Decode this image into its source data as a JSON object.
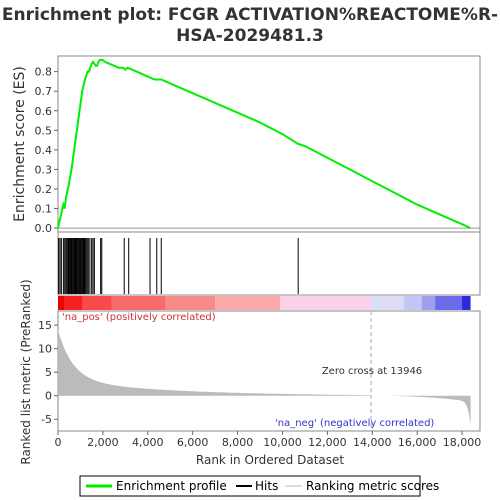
{
  "chart_data": {
    "type": "line",
    "title_lines": [
      "Enrichment plot: FCGR ACTIVATION%REACTOME%R-",
      "HSA-2029481.3"
    ],
    "es_panel": {
      "ylabel": "Enrichment score (ES)",
      "y_ticks": [
        "0.0",
        "0.1",
        "0.2",
        "0.3",
        "0.4",
        "0.5",
        "0.6",
        "0.7",
        "0.8"
      ],
      "ylim": [
        -0.02,
        0.88
      ],
      "x": [
        0,
        60,
        120,
        180,
        240,
        300,
        360,
        420,
        480,
        540,
        600,
        660,
        720,
        780,
        840,
        900,
        960,
        1020,
        1080,
        1140,
        1200,
        1260,
        1320,
        1380,
        1440,
        1500,
        1560,
        1620,
        1680,
        1740,
        1800,
        1860,
        1920,
        1980,
        2100,
        2300,
        2500,
        2700,
        2900,
        3000,
        3100,
        3300,
        3500,
        3700,
        3900,
        4100,
        4300,
        4500,
        4600,
        5000,
        6000,
        7000,
        8000,
        9000,
        10000,
        10700,
        11000,
        12000,
        13000,
        14000,
        15000,
        16000,
        17000,
        18000,
        18380
      ],
      "y": [
        0.0,
        0.03,
        0.06,
        0.09,
        0.12,
        0.1,
        0.16,
        0.19,
        0.22,
        0.26,
        0.3,
        0.35,
        0.4,
        0.45,
        0.5,
        0.55,
        0.6,
        0.65,
        0.7,
        0.73,
        0.76,
        0.78,
        0.8,
        0.8,
        0.82,
        0.84,
        0.85,
        0.84,
        0.83,
        0.83,
        0.85,
        0.86,
        0.86,
        0.86,
        0.85,
        0.84,
        0.83,
        0.82,
        0.82,
        0.81,
        0.82,
        0.81,
        0.8,
        0.79,
        0.78,
        0.77,
        0.76,
        0.76,
        0.76,
        0.74,
        0.69,
        0.64,
        0.59,
        0.54,
        0.48,
        0.43,
        0.42,
        0.36,
        0.3,
        0.24,
        0.18,
        0.12,
        0.07,
        0.02,
        0.0
      ]
    },
    "hits": [
      30,
      90,
      150,
      240,
      300,
      350,
      400,
      450,
      480,
      520,
      560,
      600,
      640,
      680,
      720,
      760,
      800,
      840,
      880,
      920,
      960,
      1000,
      1040,
      1080,
      1120,
      1160,
      1200,
      1250,
      1300,
      1350,
      1420,
      1500,
      1560,
      1620,
      1900,
      1950,
      2950,
      3150,
      4100,
      4400,
      4600,
      10700
    ],
    "ranked_panel": {
      "ylabel": "Ranked list metric (PreRanked)",
      "y_ticks": [
        "-5",
        "0",
        "5",
        "10",
        "15"
      ],
      "ylim": [
        -7.5,
        18
      ],
      "label_pos": "'na_pos' (positively correlated)",
      "label_neg": "'na_neg' (negatively correlated)",
      "zero_cross_label": "Zero cross at 13946",
      "zero_cross": 13946
    },
    "xlabel": "Rank in Ordered Dataset",
    "x_ticks": [
      "0",
      "2,000",
      "4,000",
      "6,000",
      "8,000",
      "10,000",
      "12,000",
      "14,000",
      "16,000",
      "18,000"
    ],
    "x_tick_values": [
      0,
      2000,
      4000,
      6000,
      8000,
      10000,
      12000,
      14000,
      16000,
      18000
    ],
    "xlim": [
      0,
      18800
    ],
    "n_genes": 18380,
    "colors": {
      "es_line": "#00ee00",
      "hits": "#000000",
      "metric_fill": "#bbbbbb",
      "zero_line": "#aaaaaa",
      "pos_label": "#cc3333",
      "neg_label": "#3333cc"
    },
    "legend": {
      "placement": "bottom",
      "items": [
        "Enrichment profile",
        "Hits",
        "Ranking metric scores"
      ]
    }
  }
}
